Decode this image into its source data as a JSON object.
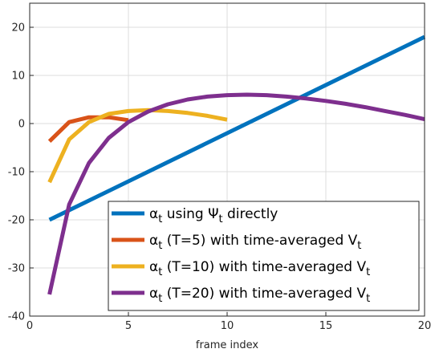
{
  "chart_data": {
    "type": "line",
    "title": "",
    "xlabel": "frame index",
    "ylabel": "",
    "xlim": [
      0,
      20
    ],
    "ylim": [
      -40,
      25
    ],
    "xticks": [
      0,
      5,
      10,
      15,
      20
    ],
    "yticks": [
      -40,
      -30,
      -20,
      -10,
      0,
      10,
      20
    ],
    "grid": true,
    "legend_position": "bottom-right",
    "series": [
      {
        "name": "α_t using Ψ_t directly",
        "legend": {
          "sym": "α",
          "sub": "t",
          "before": " using ",
          "sym2": "Ψ",
          "sub2": "t",
          "after": " directly"
        },
        "color": "#0072BD",
        "x": [
          1,
          20
        ],
        "y": [
          -20,
          18
        ]
      },
      {
        "name": "α_t (T=5) with time-averaged V_t",
        "legend": {
          "sym": "α",
          "sub": "t",
          "before": "  (T=5) with time-averaged V",
          "sub2": "t"
        },
        "color": "#D95319",
        "x": [
          1,
          2,
          3,
          4,
          5
        ],
        "y": [
          -3.7,
          0.3,
          1.3,
          1.3,
          0.7
        ]
      },
      {
        "name": "α_t (T=10) with time-averaged V_t",
        "legend": {
          "sym": "α",
          "sub": "t",
          "before": " (T=10) with time-averaged V",
          "sub2": "t"
        },
        "color": "#EDB120",
        "x": [
          1,
          2,
          3,
          4,
          5,
          6,
          7,
          8,
          9,
          10
        ],
        "y": [
          -12.2,
          -3.3,
          0.3,
          2.0,
          2.6,
          2.8,
          2.6,
          2.2,
          1.6,
          0.8
        ]
      },
      {
        "name": "α_t (T=20) with time-averaged V_t",
        "legend": {
          "sym": "α",
          "sub": "t",
          "before": " (T=20) with time-averaged V",
          "sub2": "t"
        },
        "color": "#7E2F8E",
        "x": [
          1,
          2,
          3,
          4,
          5,
          6,
          7,
          8,
          9,
          10,
          11,
          12,
          13,
          14,
          15,
          16,
          17,
          18,
          19,
          20
        ],
        "y": [
          -35.5,
          -16.8,
          -8.2,
          -3.0,
          0.3,
          2.5,
          4.0,
          5.0,
          5.6,
          5.9,
          6.0,
          5.9,
          5.6,
          5.2,
          4.7,
          4.1,
          3.4,
          2.6,
          1.8,
          0.9
        ]
      }
    ]
  }
}
